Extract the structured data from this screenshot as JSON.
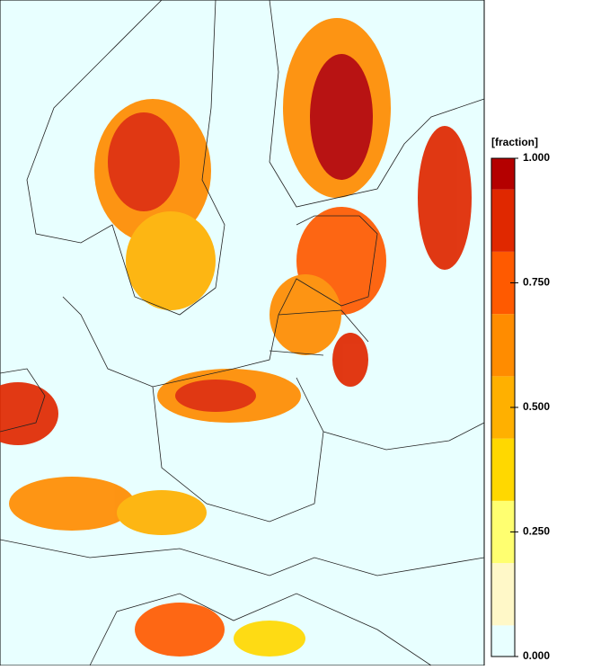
{
  "chart_data": {
    "type": "colorbar-map",
    "colorbar_label": "[fraction]",
    "bounds": [
      0,
      0.0625,
      0.1875,
      0.3125,
      0.4375,
      0.5625,
      0.6875,
      0.8125,
      0.9375,
      1
    ],
    "colors": [
      "#e8ffff",
      "#fff8c8",
      "#ffff70",
      "#ffd800",
      "#ffb000",
      "#ff8c00",
      "#ff5a00",
      "#e02800",
      "#b40000"
    ],
    "ylim": [
      0,
      1
    ],
    "yticks": [
      {
        "value": 1,
        "label": "1.000"
      },
      {
        "value": 0.75,
        "label": "0.750"
      },
      {
        "value": 0.5,
        "label": "0.500"
      },
      {
        "value": 0.25,
        "label": "0.250"
      },
      {
        "value": 0,
        "label": "0.000"
      }
    ]
  }
}
